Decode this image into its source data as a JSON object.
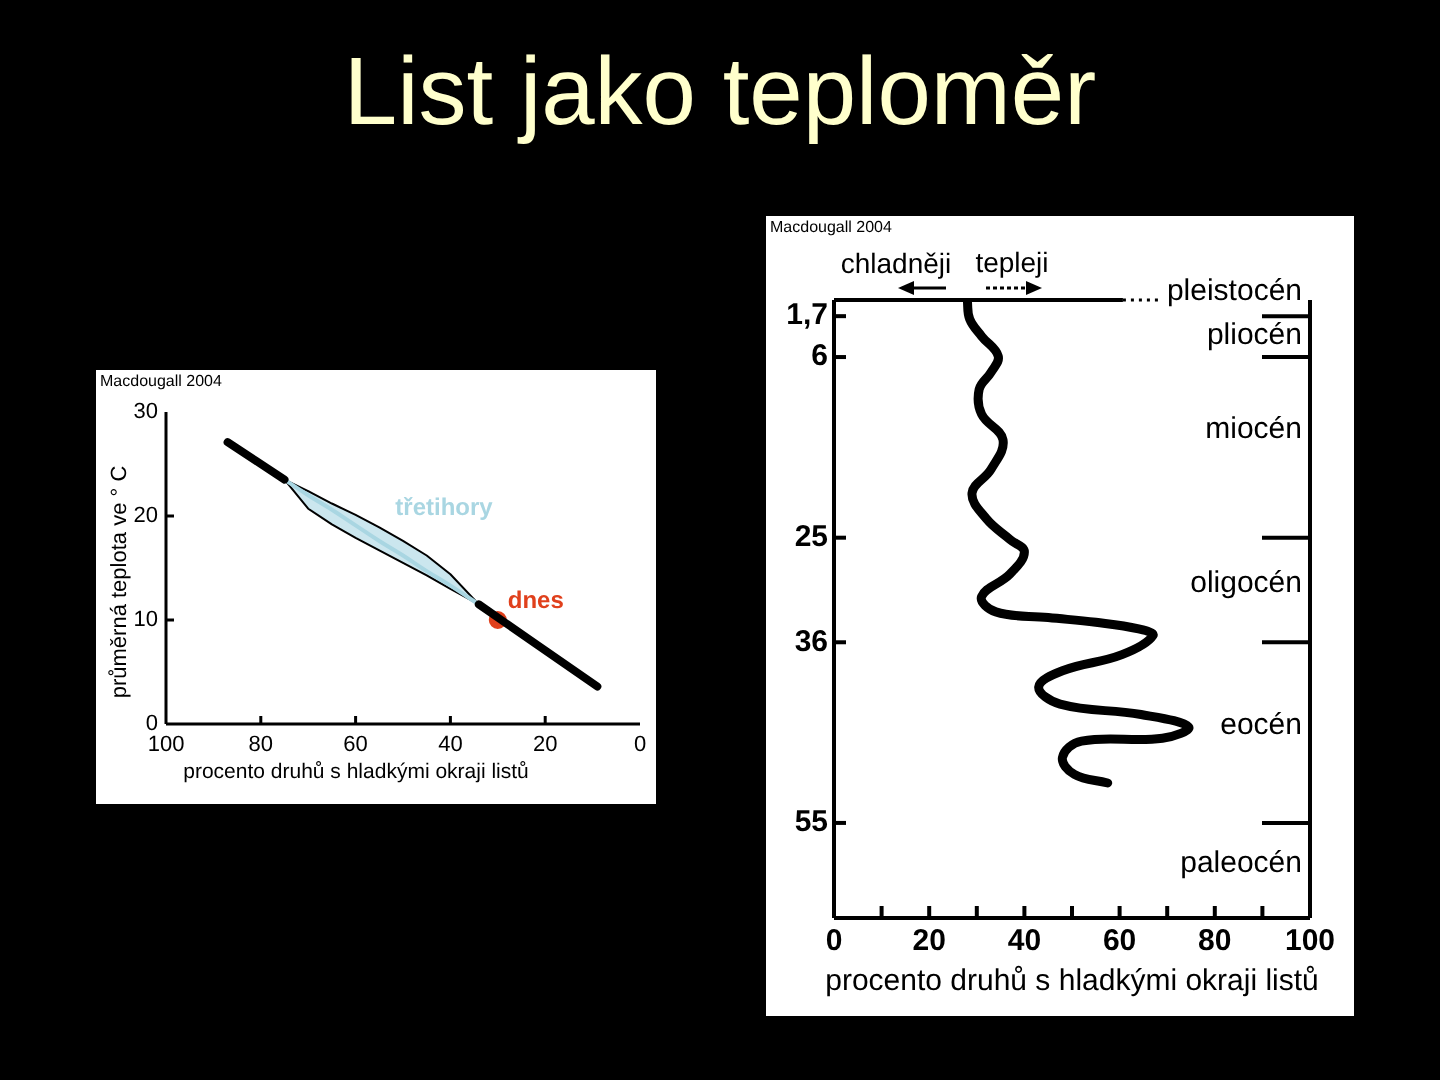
{
  "chart_data": [
    {
      "type": "line",
      "title": "List jako teploměr",
      "xlabel": "procento druhů s hladkými okraji listů",
      "ylabel": "průměrná teplota ve ° C",
      "annotations": [
        "Macdougall 2004"
      ],
      "xlim": [
        100,
        0
      ],
      "xticks": [
        100,
        80,
        60,
        40,
        20,
        0
      ],
      "ylim": [
        0,
        30
      ],
      "yticks": [
        0,
        10,
        20,
        30
      ],
      "series": [
        {
          "color": "#000000",
          "x": [
            87,
            75,
            55,
            34,
            9
          ],
          "values": [
            27.1,
            23.5,
            null,
            11.5,
            3.6
          ]
        },
        {
          "name": "třetihory",
          "color": "#a9d6e2",
          "x": [
            75,
            70,
            65,
            60,
            55,
            50,
            45,
            40,
            34
          ],
          "values": [
            23.5,
            22,
            20.6,
            19.1,
            17.6,
            16.2,
            14.7,
            13.3,
            11.5
          ],
          "lower": [
            23.5,
            20.7,
            19.2,
            17.9,
            16.7,
            15.5,
            14.3,
            13,
            11.5
          ],
          "upper": [
            23.5,
            22.4,
            21.2,
            20.1,
            18.9,
            17.6,
            16.2,
            14.4,
            11.5
          ]
        },
        {
          "name": "dnes",
          "type": "scatter",
          "marker": "circle",
          "color": "#e0401c",
          "x": [
            30
          ],
          "values": [
            10
          ]
        }
      ]
    },
    {
      "type": "line",
      "xlabel": "procento druhů s hladkými okraji listů",
      "annotations": [
        "Macdougall 2004",
        "chladněji",
        "tepleji",
        "pleistocén",
        "pliocén",
        "miocén",
        "oligocén",
        "eocén",
        "paleocén"
      ],
      "xlim": [
        0,
        100
      ],
      "xticks": [
        0,
        {
          "value": 10,
          "label": null
        },
        20,
        {
          "value": 30,
          "label": null
        },
        40,
        {
          "value": 50,
          "label": null
        },
        60,
        {
          "value": 70,
          "label": null
        },
        80,
        {
          "value": 90,
          "label": null
        },
        100
      ],
      "ylim": [
        65,
        0
      ],
      "yticks": [
        {
          "value": 1.7,
          "label": "1,7"
        },
        6,
        25,
        36,
        55
      ],
      "ref_lines": [
        {
          "axis": "y",
          "value": 1.7
        },
        {
          "axis": "y",
          "value": 6
        },
        {
          "axis": "y",
          "value": 25
        },
        {
          "axis": "y",
          "value": 36
        },
        {
          "axis": "y",
          "value": 55
        }
      ],
      "series": [
        {
          "color": "#000000",
          "x": [
            28,
            28.5,
            31,
            34.5,
            33,
            30.5,
            31,
            35.5,
            33,
            29,
            32,
            37,
            40,
            37,
            31,
            34,
            45,
            55,
            64,
            67,
            60.5,
            48,
            43,
            47.5,
            64.5,
            74.5,
            69,
            52,
            48,
            50.5,
            57.5
          ],
          "values": [
            0,
            2,
            3.8,
            5.9,
            7.6,
            9.4,
            12,
            14.7,
            17.8,
            20.3,
            23,
            25.2,
            26.5,
            28.8,
            31.2,
            32.8,
            33.4,
            33.9,
            34.6,
            35.3,
            37.3,
            39,
            40.7,
            42.5,
            43.6,
            44.9,
            46.1,
            46.4,
            48.1,
            49.9,
            50.8
          ]
        }
      ]
    }
  ]
}
